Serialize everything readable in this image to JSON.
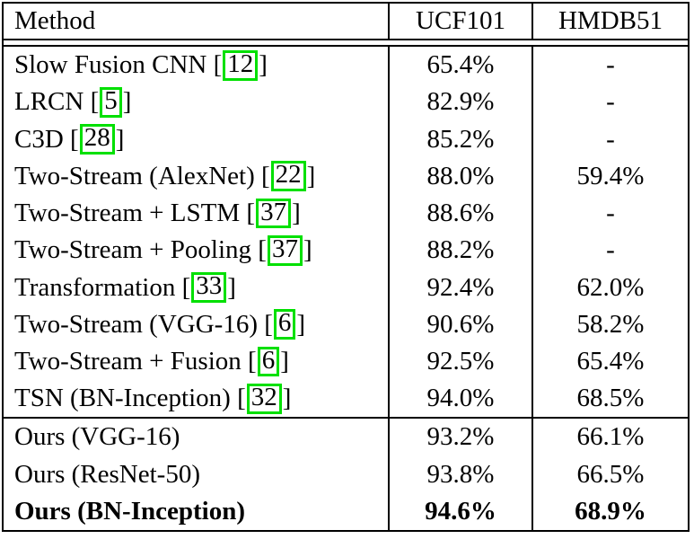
{
  "table": {
    "header": {
      "method": "Method",
      "ucf101": "UCF101",
      "hmdb51": "HMDB51"
    },
    "rows": [
      {
        "method": "Slow Fusion CNN",
        "cite_open": " [",
        "cite": "12",
        "cite_close": "]",
        "ucf101": "65.4%",
        "hmdb51": "-"
      },
      {
        "method": "LRCN",
        "cite_open": " [",
        "cite": "5",
        "cite_close": "]",
        "ucf101": "82.9%",
        "hmdb51": "-"
      },
      {
        "method": "C3D",
        "cite_open": " [",
        "cite": "28",
        "cite_close": "]",
        "ucf101": "85.2%",
        "hmdb51": "-"
      },
      {
        "method": "Two-Stream (AlexNet)",
        "cite_open": " [",
        "cite": "22",
        "cite_close": "]",
        "ucf101": "88.0%",
        "hmdb51": "59.4%"
      },
      {
        "method": "Two-Stream + LSTM",
        "cite_open": " [",
        "cite": "37",
        "cite_close": "]",
        "ucf101": "88.6%",
        "hmdb51": "-"
      },
      {
        "method": "Two-Stream + Pooling",
        "cite_open": " [",
        "cite": "37",
        "cite_close": "]",
        "ucf101": "88.2%",
        "hmdb51": "-"
      },
      {
        "method": "Transformation",
        "cite_open": " [",
        "cite": "33",
        "cite_close": "]",
        "ucf101": "92.4%",
        "hmdb51": "62.0%"
      },
      {
        "method": "Two-Stream (VGG-16)",
        "cite_open": " [",
        "cite": "6",
        "cite_close": "]",
        "ucf101": "90.6%",
        "hmdb51": "58.2%"
      },
      {
        "method": "Two-Stream + Fusion",
        "cite_open": " [",
        "cite": "6",
        "cite_close": "]",
        "ucf101": "92.5%",
        "hmdb51": "65.4%"
      },
      {
        "method": "TSN (BN-Inception)",
        "cite_open": " [",
        "cite": "32",
        "cite_close": "]",
        "ucf101": "94.0%",
        "hmdb51": "68.5%"
      },
      {
        "method": "Ours (VGG-16)",
        "ucf101": "93.2%",
        "hmdb51": "66.1%"
      },
      {
        "method": "Ours (ResNet-50)",
        "ucf101": "93.8%",
        "hmdb51": "66.5%"
      },
      {
        "method": "Ours (BN-Inception)",
        "ucf101": "94.6%",
        "hmdb51": "68.9%"
      }
    ],
    "colors": {
      "citation_box": "#00e000",
      "border": "#000000",
      "background": "#ffffff",
      "text": "#000000"
    }
  }
}
